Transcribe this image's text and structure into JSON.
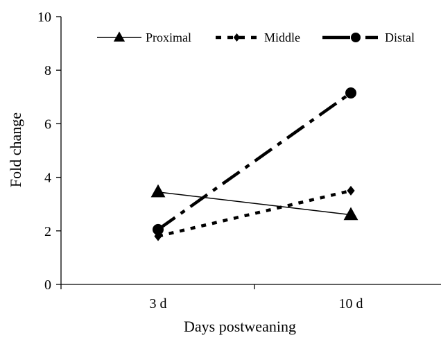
{
  "chart_data": {
    "type": "line",
    "xlabel": "Days postweaning",
    "ylabel": "Fold change",
    "categories": [
      "3 d",
      "10 d"
    ],
    "ylim": [
      0,
      10
    ],
    "yticks": [
      0,
      2,
      4,
      6,
      8,
      10
    ],
    "grid": false,
    "legend_position": "top",
    "series": [
      {
        "name": "Proximal",
        "values": [
          3.45,
          2.6
        ],
        "marker": "triangle",
        "line_style": "solid",
        "color": "#000000"
      },
      {
        "name": "Middle",
        "values": [
          1.8,
          3.5
        ],
        "marker": "diamond",
        "line_style": "dotted",
        "color": "#000000"
      },
      {
        "name": "Distal",
        "values": [
          2.05,
          7.15
        ],
        "marker": "circle",
        "line_style": "dash-dot",
        "color": "#000000"
      }
    ]
  }
}
